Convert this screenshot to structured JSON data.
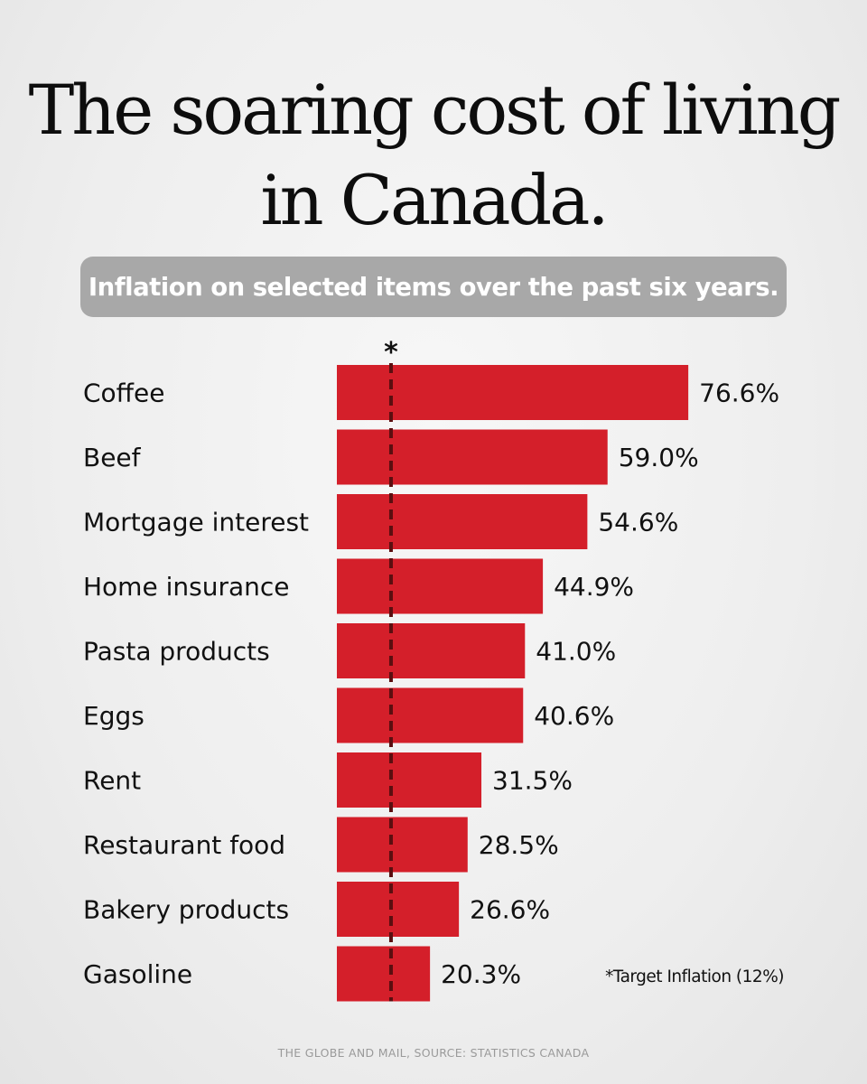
{
  "chart_data": {
    "type": "bar",
    "orientation": "horizontal",
    "title_lines": [
      "The soaring cost of living",
      "in Canada."
    ],
    "subtitle": "Inflation on selected items over the past six years.",
    "categories": [
      "Coffee",
      "Beef",
      "Mortgage interest",
      "Home insurance",
      "Pasta products",
      "Eggs",
      "Rent",
      "Restaurant food",
      "Bakery products",
      "Gasoline"
    ],
    "values": [
      76.6,
      59.0,
      54.6,
      44.9,
      41.0,
      40.6,
      31.5,
      28.5,
      26.6,
      20.3
    ],
    "value_labels": [
      "76.6%",
      "59.0%",
      "54.6%",
      "44.9%",
      "41.0%",
      "40.6%",
      "31.5%",
      "28.5%",
      "26.6%",
      "20.3%"
    ],
    "reference_line": {
      "value": 12,
      "marker": "*",
      "style": "dashed"
    },
    "note": "*Target Inflation (12%)",
    "source": "THE GLOBE AND MAIL, SOURCE: STATISTICS CANADA",
    "bar_color": "#d41f2a",
    "reference_line_color": "#5a0e10",
    "grid": false,
    "legend": "none"
  }
}
